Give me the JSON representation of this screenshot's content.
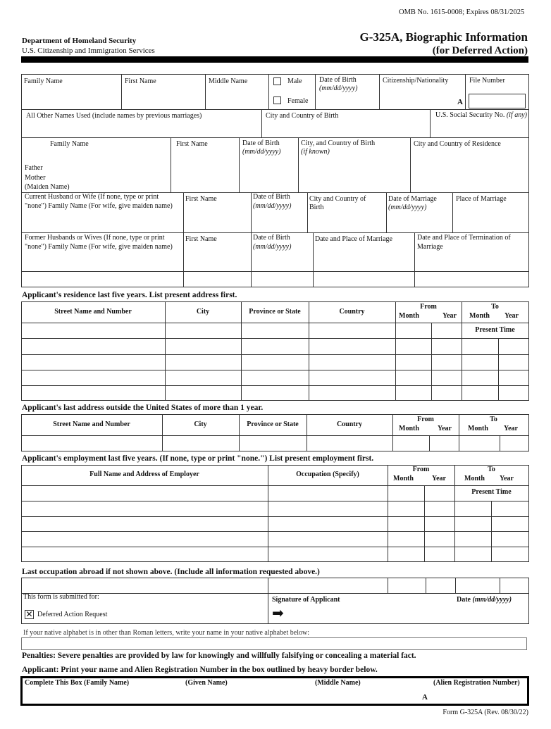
{
  "header": {
    "omb": "OMB No. 1615-0008; Expires 08/31/2025",
    "dept": "Department of Homeland Security",
    "agency": "U.S. Citizenship and Immigration Services",
    "title": "G-325A, Biographic Information",
    "subtitle": "(for Deferred Action)"
  },
  "s1": {
    "family_name": "Family Name",
    "first_name": "First Name",
    "middle_name": "Middle Name",
    "male": "Male",
    "female": "Female",
    "dob": "Date of Birth",
    "dob_fmt": "(mm/dd/yyyy)",
    "citizenship": "Citizenship/Nationality",
    "file_number": "File Number",
    "a_prefix": "A",
    "other_names": "All Other Names Used (include names by previous marriages)",
    "city_country_birth": "City and Country of Birth",
    "ssn": "U.S. Social Security No.",
    "ssn_note": "(if any)"
  },
  "parents": {
    "family_name": "Family Name",
    "first_name": "First Name",
    "dob": "Date of Birth",
    "dob_fmt": "(mm/dd/yyyy)",
    "city_birth": "City, and Country of Birth",
    "if_known": "(if known)",
    "residence": "City and Country of Residence",
    "father": "Father",
    "mother": "Mother",
    "maiden": "(Maiden Name)"
  },
  "spouse": {
    "label1": "Current Husband or Wife (If none, type or print",
    "label2": "\"none\") Family Name (For wife, give maiden name)",
    "first_name": "First Name",
    "dob": "Date of Birth",
    "dob_fmt": "(mm/dd/yyyy)",
    "city1": "City and Country of",
    "city2": "Birth",
    "dom": "Date of Marriage",
    "dom_fmt": "(mm/dd/yyyy)",
    "place": "Place of Marriage"
  },
  "former": {
    "label1": "Former Husbands or Wives (If none, type or print",
    "label2": "\"none\") Family Name (For wife, give maiden name)",
    "first_name": "First Name",
    "dob": "Date of Birth",
    "dob_fmt": "(mm/dd/yyyy)",
    "date_place": "Date and Place of Marriage",
    "term1": "Date and Place of Termination of",
    "term2": "Marriage"
  },
  "residence": {
    "title": "Applicant's residence last five years.  List present address first.",
    "street": "Street Name and Number",
    "city": "City",
    "province": "Province or State",
    "country": "Country",
    "from": "From",
    "to": "To",
    "month": "Month",
    "year": "Year",
    "present_time": "Present Time"
  },
  "outside": {
    "title": "Applicant's last address outside the United States of more than 1 year.",
    "street": "Street Name and Number",
    "city": "City",
    "province": "Province or State",
    "country": "Country",
    "from": "From",
    "to": "To",
    "month": "Month",
    "year": "Year"
  },
  "employment": {
    "title": "Applicant's employment last five years.  (If none, type or print \"none.\") List present employment first.",
    "employer": "Full Name and Address of Employer",
    "occupation": "Occupation (Specify)",
    "from": "From",
    "to": "To",
    "month": "Month",
    "year": "Year",
    "present_time": "Present Time"
  },
  "last_occ": {
    "title": "Last occupation abroad if not shown above. (Include all information requested above.)",
    "submitted_for": "This form is submitted for:",
    "deferred": "Deferred Action Request",
    "deferred_checked": true,
    "signature": "Signature of Applicant",
    "date": "Date",
    "date_fmt": "(mm/dd/yyyy)"
  },
  "native": {
    "label": "If your native alphabet is in other than Roman letters, write your name in your native alphabet below:"
  },
  "penalties": "Penalties: Severe penalties are provided by law for knowingly and willfully falsifying or concealing a material fact.",
  "applicant_note": "Applicant: Print your name and Alien Registration Number in the box outlined by heavy border below.",
  "complete_box": {
    "label": "Complete This Box  (Family Name)",
    "given": "(Given Name)",
    "middle": "(Middle Name)",
    "alien": "(Alien Registration Number)",
    "a_prefix": "A"
  },
  "footer": "Form G-325A (Rev. 08/30/22)"
}
